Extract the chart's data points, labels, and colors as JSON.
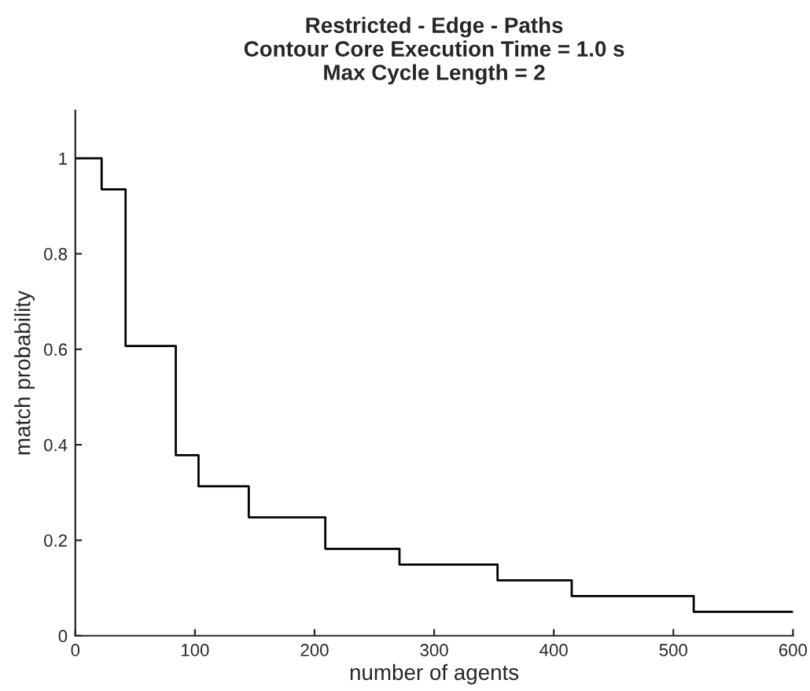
{
  "chart_data": {
    "type": "step",
    "title": "Restricted - Edge - Paths\nContour Core Execution Time = 1.0 s\nMax Cycle Length = 2",
    "xlabel": "number of agents",
    "ylabel": "match probability",
    "series": [
      {
        "color": "#000000",
        "x": [
          0,
          22,
          42,
          84,
          103,
          145,
          209,
          271,
          353,
          415,
          517,
          600
        ],
        "values": [
          1,
          0.935,
          0.607,
          0.378,
          0.313,
          0.248,
          0.182,
          0.149,
          0.116,
          0.083,
          0.05,
          0.05
        ]
      }
    ],
    "xlim": [
      0,
      600
    ],
    "xticks": [
      0,
      100,
      200,
      300,
      400,
      500,
      600
    ],
    "ylim": [
      0,
      1.1
    ],
    "yticks": [
      0,
      0.2,
      0.4,
      0.6,
      0.8,
      1
    ],
    "grid": false,
    "legend": false
  }
}
